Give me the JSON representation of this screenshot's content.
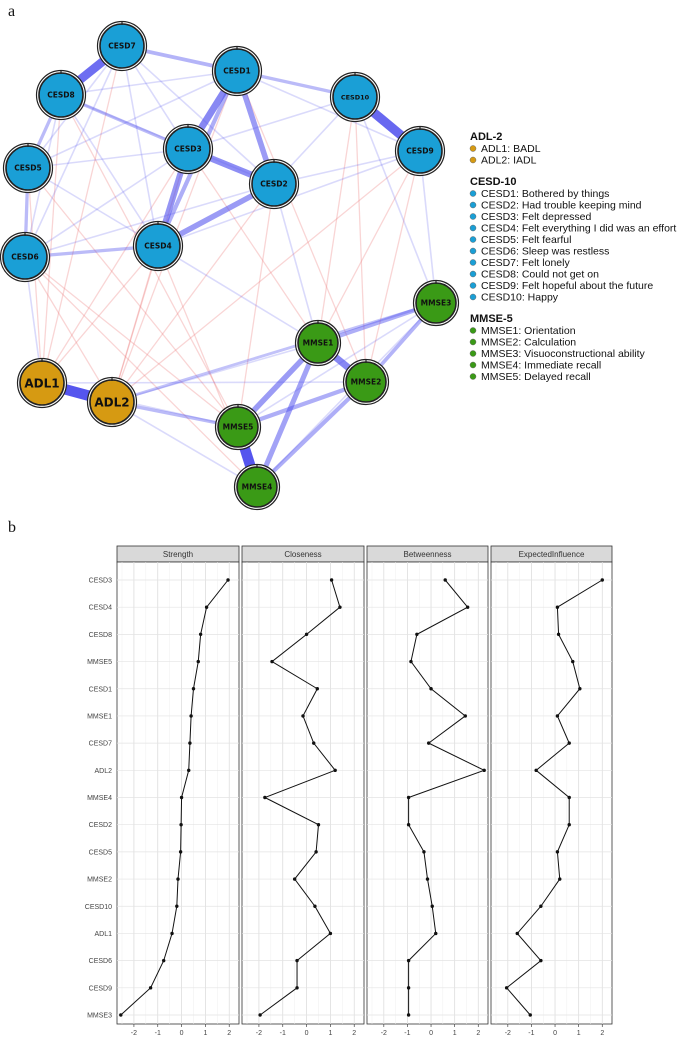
{
  "panel_a_label": "a",
  "panel_b_label": "b",
  "network": {
    "nodes": [
      {
        "id": "CESD7",
        "label": "CESD7",
        "group": "cesd"
      },
      {
        "id": "CESD1",
        "label": "CESD1",
        "group": "cesd"
      },
      {
        "id": "CESD8",
        "label": "CESD8",
        "group": "cesd"
      },
      {
        "id": "CESD10",
        "label": "CESD10",
        "group": "cesd"
      },
      {
        "id": "CESD3",
        "label": "CESD3",
        "group": "cesd"
      },
      {
        "id": "CESD9",
        "label": "CESD9",
        "group": "cesd"
      },
      {
        "id": "CESD5",
        "label": "CESD5",
        "group": "cesd"
      },
      {
        "id": "CESD2",
        "label": "CESD2",
        "group": "cesd"
      },
      {
        "id": "CESD4",
        "label": "CESD4",
        "group": "cesd"
      },
      {
        "id": "CESD6",
        "label": "CESD6",
        "group": "cesd"
      },
      {
        "id": "MMSE3",
        "label": "MMSE3",
        "group": "mmse"
      },
      {
        "id": "MMSE1",
        "label": "MMSE1",
        "group": "mmse"
      },
      {
        "id": "ADL1",
        "label": "ADL1",
        "group": "adl"
      },
      {
        "id": "ADL2",
        "label": "ADL2",
        "group": "adl"
      },
      {
        "id": "MMSE2",
        "label": "MMSE2",
        "group": "mmse"
      },
      {
        "id": "MMSE5",
        "label": "MMSE5",
        "group": "mmse"
      },
      {
        "id": "MMSE4",
        "label": "MMSE4",
        "group": "mmse"
      }
    ],
    "colors": {
      "cesd": "#1a9fd6",
      "mmse": "#3a9a16",
      "adl": "#d69a12",
      "positive_edge": "#5555ee",
      "negative_edge": "#ee8888"
    },
    "strong_edges": [
      {
        "from": "CESD7",
        "to": "CESD8",
        "weight": 0.8
      },
      {
        "from": "CESD10",
        "to": "CESD9",
        "weight": 0.85
      },
      {
        "from": "CESD1",
        "to": "CESD3",
        "weight": 0.6
      },
      {
        "from": "CESD1",
        "to": "CESD2",
        "weight": 0.45
      },
      {
        "from": "CESD3",
        "to": "CESD2",
        "weight": 0.55
      },
      {
        "from": "CESD3",
        "to": "CESD4",
        "weight": 0.5
      },
      {
        "from": "CESD2",
        "to": "CESD4",
        "weight": 0.45
      },
      {
        "from": "CESD1",
        "to": "CESD4",
        "weight": 0.3
      },
      {
        "from": "ADL1",
        "to": "ADL2",
        "weight": 1.0
      },
      {
        "from": "MMSE5",
        "to": "MMSE4",
        "weight": 1.0
      },
      {
        "from": "MMSE1",
        "to": "MMSE2",
        "weight": 0.6
      },
      {
        "from": "MMSE1",
        "to": "MMSE5",
        "weight": 0.45
      },
      {
        "from": "MMSE1",
        "to": "MMSE4",
        "weight": 0.4
      },
      {
        "from": "MMSE1",
        "to": "MMSE3",
        "weight": 0.3
      },
      {
        "from": "MMSE2",
        "to": "MMSE4",
        "weight": 0.3
      },
      {
        "from": "MMSE3",
        "to": "MMSE2",
        "weight": 0.25
      },
      {
        "from": "MMSE2",
        "to": "MMSE5",
        "weight": 0.3
      },
      {
        "from": "CESD7",
        "to": "CESD1",
        "weight": 0.25
      },
      {
        "from": "CESD8",
        "to": "CESD3",
        "weight": 0.2
      },
      {
        "from": "CESD8",
        "to": "CESD5",
        "weight": 0.2
      },
      {
        "from": "CESD5",
        "to": "CESD6",
        "weight": 0.2
      },
      {
        "from": "CESD6",
        "to": "CESD4",
        "weight": 0.2
      },
      {
        "from": "CESD1",
        "to": "CESD10",
        "weight": 0.2
      },
      {
        "from": "ADL2",
        "to": "MMSE5",
        "weight": 0.2
      },
      {
        "from": "MMSE3",
        "to": "ADL2",
        "weight": 0.15
      }
    ],
    "weak_positive_edges": [
      [
        "CESD7",
        "CESD3"
      ],
      [
        "CESD7",
        "CESD5"
      ],
      [
        "CESD7",
        "CESD6"
      ],
      [
        "CESD7",
        "CESD4"
      ],
      [
        "CESD7",
        "CESD2"
      ],
      [
        "CESD8",
        "CESD1"
      ],
      [
        "CESD8",
        "CESD6"
      ],
      [
        "CESD8",
        "CESD4"
      ],
      [
        "CESD8",
        "CESD2"
      ],
      [
        "CESD5",
        "CESD3"
      ],
      [
        "CESD5",
        "CESD4"
      ],
      [
        "CESD5",
        "CESD1"
      ],
      [
        "CESD6",
        "CESD3"
      ],
      [
        "CESD6",
        "CESD2"
      ],
      [
        "CESD1",
        "CESD9"
      ],
      [
        "CESD3",
        "CESD10"
      ],
      [
        "CESD2",
        "CESD9"
      ],
      [
        "CESD2",
        "CESD10"
      ],
      [
        "CESD4",
        "CESD9"
      ],
      [
        "CESD4",
        "MMSE1"
      ],
      [
        "CESD2",
        "MMSE1"
      ],
      [
        "ADL1",
        "MMSE5"
      ],
      [
        "ADL1",
        "MMSE2"
      ],
      [
        "ADL2",
        "MMSE1"
      ],
      [
        "ADL2",
        "MMSE4"
      ],
      [
        "MMSE3",
        "MMSE5"
      ],
      [
        "MMSE3",
        "MMSE4"
      ],
      [
        "CESD9",
        "MMSE3"
      ],
      [
        "CESD10",
        "MMSE3"
      ],
      [
        "CESD6",
        "ADL1"
      ]
    ],
    "weak_negative_edges": [
      [
        "CESD8",
        "ADL1"
      ],
      [
        "CESD5",
        "ADL1"
      ],
      [
        "CESD6",
        "ADL2"
      ],
      [
        "CESD4",
        "ADL1"
      ],
      [
        "CESD4",
        "ADL2"
      ],
      [
        "CESD3",
        "ADL1"
      ],
      [
        "CESD3",
        "ADL2"
      ],
      [
        "CESD2",
        "MMSE5"
      ],
      [
        "CESD9",
        "MMSE1"
      ],
      [
        "CESD10",
        "MMSE2"
      ],
      [
        "CESD9",
        "MMSE2"
      ],
      [
        "CESD1",
        "MMSE2"
      ],
      [
        "CESD7",
        "ADL1"
      ],
      [
        "CESD2",
        "ADL2"
      ],
      [
        "CESD9",
        "ADL2"
      ],
      [
        "CESD10",
        "MMSE1"
      ],
      [
        "CESD5",
        "MMSE5"
      ],
      [
        "CESD6",
        "MMSE5"
      ],
      [
        "CESD4",
        "MMSE4"
      ],
      [
        "CESD8",
        "MMSE5"
      ],
      [
        "CESD1",
        "ADL2"
      ],
      [
        "CESD3",
        "MMSE1"
      ],
      [
        "CESD6",
        "MMSE4"
      ]
    ]
  },
  "legend": [
    {
      "title": "ADL-2",
      "color": "#d69a12",
      "items": [
        "ADL1: BADL",
        "ADL2: IADL"
      ]
    },
    {
      "title": "CESD-10",
      "color": "#1a9fd6",
      "items": [
        "CESD1: Bothered by things",
        "CESD2: Had trouble keeping mind",
        "CESD3: Felt depressed",
        "CESD4: Felt everything I did was an effort",
        "CESD5: Felt fearful",
        "CESD6: Sleep was restless",
        "CESD7: Felt lonely",
        "CESD8: Could not get on",
        "CESD9: Felt hopeful about the future",
        "CESD10: Happy"
      ]
    },
    {
      "title": "MMSE-5",
      "color": "#3a9a16",
      "items": [
        "MMSE1: Orientation",
        "MMSE2: Calculation",
        "MMSE3: Visuoconstructional ability",
        "MMSE4: Immediate recall",
        "MMSE5: Delayed recall"
      ]
    }
  ],
  "chart_data": {
    "type": "line",
    "facets": [
      "Strength",
      "Closeness",
      "Betweenness",
      "ExpectedInfluence"
    ],
    "categories": [
      "CESD3",
      "CESD4",
      "CESD8",
      "MMSE5",
      "CESD1",
      "MMSE1",
      "CESD7",
      "ADL2",
      "MMSE4",
      "CESD2",
      "CESD5",
      "MMSE2",
      "CESD10",
      "ADL1",
      "CESD6",
      "CESD9",
      "MMSE3"
    ],
    "xlim": [
      -2.5,
      2.2
    ],
    "xticks": [
      -2,
      -1,
      0,
      1,
      2
    ],
    "grid": true,
    "series": [
      {
        "name": "Strength",
        "values": [
          1.95,
          1.05,
          0.8,
          0.7,
          0.5,
          0.4,
          0.35,
          0.3,
          0.0,
          -0.02,
          -0.04,
          -0.15,
          -0.2,
          -0.4,
          -0.75,
          -1.3,
          -2.55
        ]
      },
      {
        "name": "Closeness",
        "values": [
          1.05,
          1.4,
          0.0,
          -1.45,
          0.45,
          -0.15,
          0.3,
          1.2,
          -1.75,
          0.5,
          0.4,
          -0.5,
          0.35,
          1.0,
          -0.4,
          -0.4,
          -1.95
        ]
      },
      {
        "name": "Betweenness",
        "values": [
          0.6,
          1.55,
          -0.6,
          -0.85,
          0.0,
          1.45,
          -0.1,
          2.25,
          -0.95,
          -0.95,
          -0.3,
          -0.15,
          0.05,
          0.2,
          -0.95,
          -0.95,
          -0.95
        ]
      },
      {
        "name": "ExpectedInfluence",
        "values": [
          2.0,
          0.1,
          0.15,
          0.75,
          1.05,
          0.1,
          0.6,
          -0.8,
          0.6,
          0.6,
          0.1,
          0.2,
          -0.6,
          -1.6,
          -0.6,
          -2.05,
          -1.05
        ]
      }
    ]
  }
}
